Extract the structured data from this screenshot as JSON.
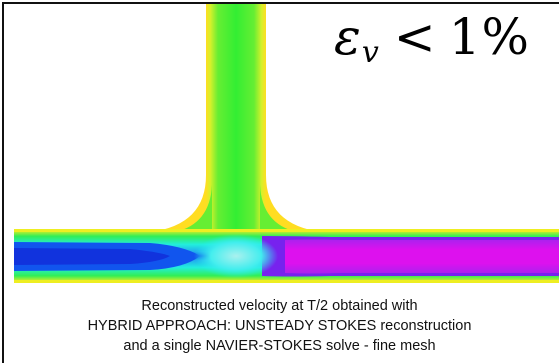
{
  "error_label": {
    "symbol": "ε",
    "subscript": "v",
    "operator": "<",
    "value": "1%"
  },
  "caption": {
    "line1": "Reconstructed velocity at T/2 obtained with",
    "line2": "HYBRID APPROACH: UNSTEADY STOKES reconstruction",
    "line3": "and a single NAVIER-STOKES solve -  fine mesh"
  },
  "colors": {
    "green": "#33ee33",
    "yellow": "#f0ee22",
    "cyan": "#22eeee",
    "blue": "#1155ee",
    "magenta": "#dd11ee",
    "purple": "#7722ee"
  }
}
